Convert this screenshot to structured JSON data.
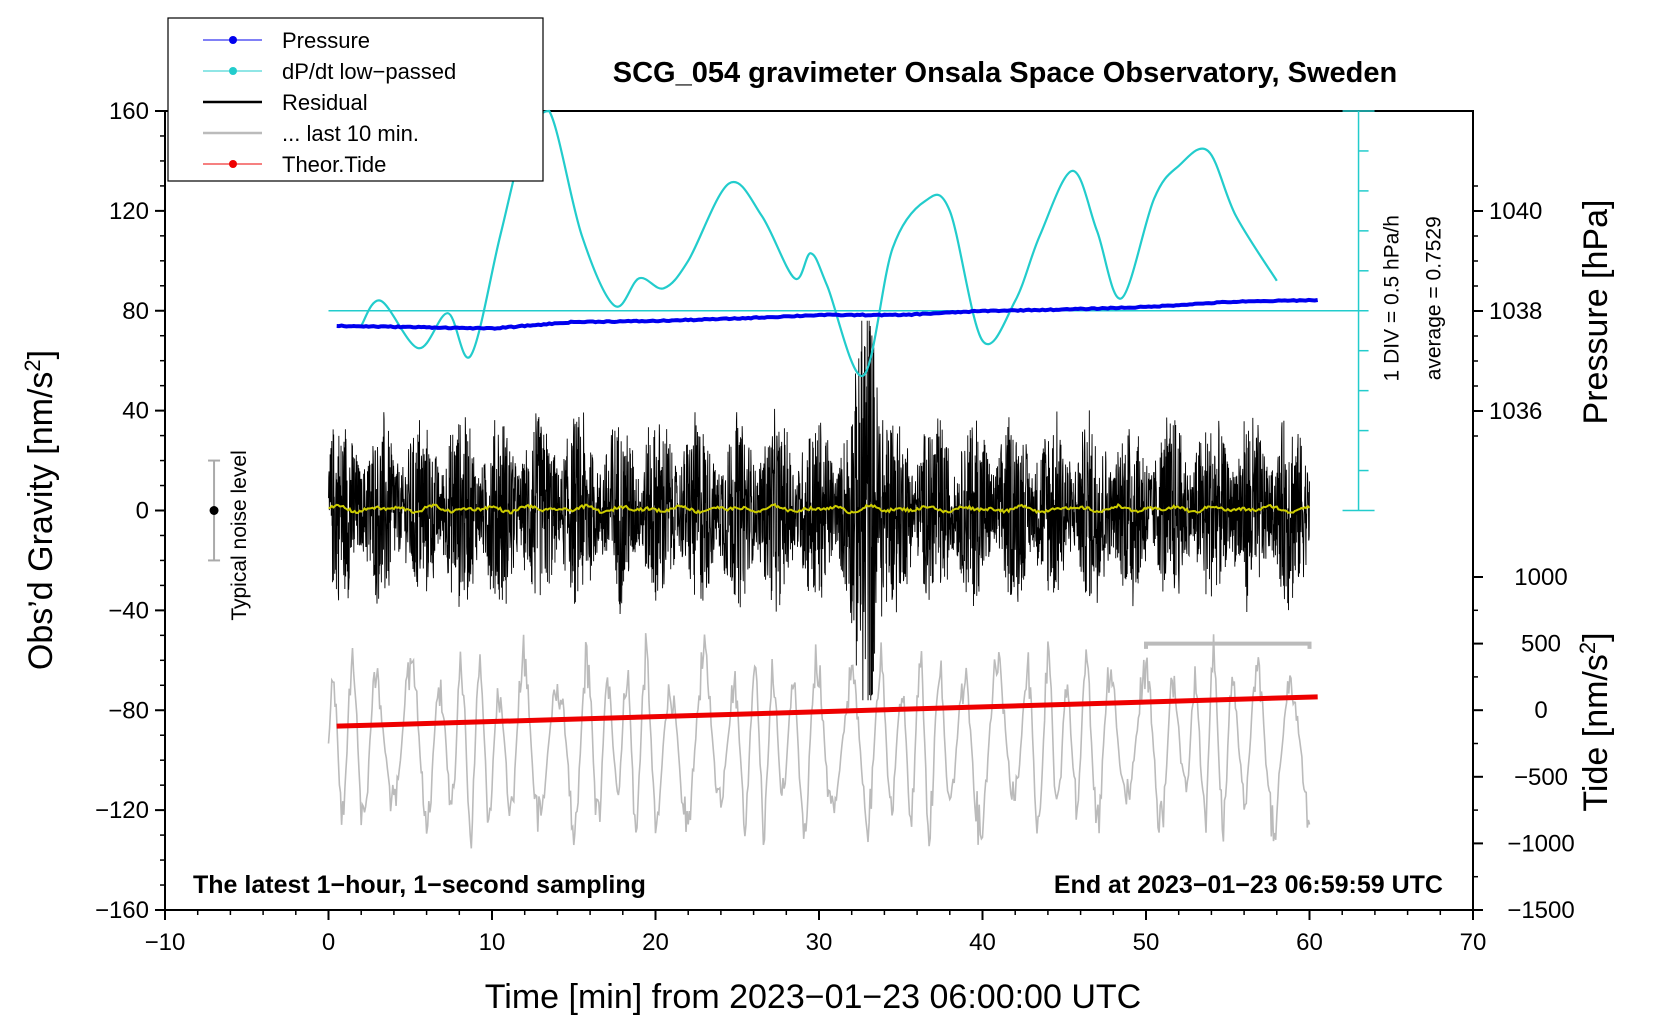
{
  "chart_data": {
    "type": "line",
    "title": "SCG_054 gravimeter Onsala Space Observatory, Sweden",
    "xlabel": "Time [min] from 2023−01−23 06:00:00 UTC",
    "ylabel_left": "Obs’d Gravity [nm/s",
    "ylabel_left_sup": "2",
    "ylabel_left_end": "]",
    "ylabel_right_top": "Pressure [hPa]",
    "ylabel_right_bottom": "Tide [nm/s",
    "ylabel_right_bottom_sup": "2",
    "ylabel_right_bottom_end": "]",
    "xlim": [
      -10,
      70
    ],
    "ylim": [
      -160,
      160
    ],
    "pressure_ylim": [
      1036,
      1040
    ],
    "tide_ylim": [
      -1500,
      1000
    ],
    "x_ticks": [
      -10,
      0,
      10,
      20,
      30,
      40,
      50,
      60,
      70
    ],
    "x_tick_labels": [
      "−10",
      "0",
      "10",
      "20",
      "30",
      "40",
      "50",
      "60",
      "70"
    ],
    "y_ticks": [
      160,
      120,
      80,
      40,
      0,
      -40,
      -80,
      -120,
      -160
    ],
    "y_tick_labels": [
      "160",
      "120",
      "80",
      "40",
      "0",
      "−40",
      "−80",
      "−120",
      "−160"
    ],
    "pressure_ticks": [
      1040,
      1038,
      1036
    ],
    "pressure_tick_labels": [
      "1040",
      "1038",
      "1036"
    ],
    "tide_ticks": [
      1000,
      500,
      0,
      -500,
      -1000,
      -1500
    ],
    "tide_tick_labels": [
      "1000",
      "500",
      "0",
      "−500",
      "−1000",
      "−1500"
    ],
    "legend": [
      {
        "label": "Pressure",
        "color": "#0000ee",
        "marker": true
      },
      {
        "label": "dP/dt low−passed",
        "color": "#22cccc",
        "marker": true
      },
      {
        "label": "Residual",
        "color": "#000000",
        "marker": false
      },
      {
        "label": "... last 10 min.",
        "color": "#bbbbbb",
        "marker": false
      },
      {
        "label": "Theor.Tide",
        "color": "#ee0000",
        "marker": true
      }
    ],
    "colors": {
      "pressure": "#0000ee",
      "dpdt": "#22cccc",
      "residual": "#000000",
      "last10": "#bbbbbb",
      "tide": "#ee0000",
      "smooth_residual": "#cccc00"
    },
    "series": [
      {
        "name": "Pressure",
        "axis": "pressure",
        "x": [
          0.5,
          5,
          10,
          15,
          20,
          25,
          30,
          35,
          40,
          45,
          50,
          55,
          60.5
        ],
        "values": [
          1037.7,
          1037.68,
          1037.65,
          1037.78,
          1037.8,
          1037.85,
          1037.92,
          1037.92,
          1038.0,
          1038.03,
          1038.08,
          1038.18,
          1038.22
        ]
      },
      {
        "name": "dP/dt low−passed",
        "axis": "gravity",
        "x": [
          2,
          3.2,
          5.5,
          7.3,
          8.7,
          10.5,
          12,
          13.5,
          15.5,
          17.5,
          19,
          20.5,
          22,
          24.5,
          26.5,
          28.5,
          29.5,
          30.5,
          32.7,
          34.5,
          36.5,
          38,
          40,
          42,
          43.5,
          45.5,
          47,
          48.5,
          50.5,
          52,
          53.8,
          55.5,
          58
        ],
        "values": [
          74,
          84,
          65,
          79,
          62,
          110,
          148,
          160,
          110,
          82,
          93,
          89,
          100,
          131,
          118,
          93,
          103,
          90,
          54,
          105,
          124,
          120,
          68,
          84,
          110,
          136,
          112,
          85,
          125,
          138,
          144,
          118,
          92
        ]
      },
      {
        "name": "Theor.Tide",
        "axis": "tide",
        "x": [
          0.5,
          60.5
        ],
        "values": [
          -120,
          100
        ]
      },
      {
        "name": "Residual",
        "axis": "gravity",
        "x_range": [
          0,
          60
        ],
        "amplitude": 40,
        "burst_center": 33,
        "burst_peak": 68
      },
      {
        "name": "... last 10 min.",
        "axis": "tide",
        "x_range": [
          0,
          60
        ],
        "amplitude": 700,
        "plateau_x": [
          50,
          60
        ],
        "plateau_value": 500
      }
    ],
    "noise_bar": {
      "label": "Typical noise level",
      "x": -7,
      "center": 0,
      "half_range": 20
    },
    "dpdt_scale": {
      "div_label": "1 DIV = 0.5 hPa/h",
      "average_label": "average = 0.7529",
      "baseline": 80,
      "x": 63
    },
    "annotations": {
      "bottom_left": "The latest 1−hour, 1−second sampling",
      "bottom_right": "End at 2023−01−23 06:59:59 UTC"
    }
  }
}
